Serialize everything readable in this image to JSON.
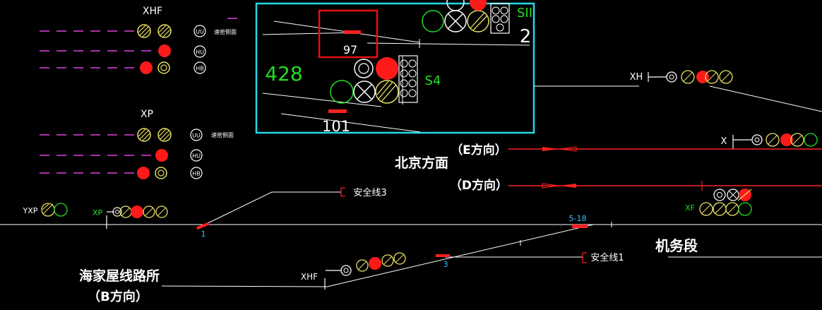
{
  "diagram": {
    "panel_signals": {
      "xhf_title": "XHF",
      "xp_title": "XP",
      "uu_badge": "UU",
      "hu_badge": "HU",
      "hb_badge": "HB",
      "xhf_note": "速密侧面",
      "xp_note": "速密侧面"
    },
    "zoom_box": {
      "label_97": "97",
      "label_428": "428",
      "label_s4": "S4",
      "label_101": "101",
      "label_sii": "SII",
      "label_2": "2"
    },
    "signals": {
      "xh": "XH",
      "x": "X",
      "xf": "XF",
      "yxp": "YXP",
      "xp_small": "XP",
      "xhf_lower": "XHF"
    },
    "directions": {
      "beijing": "北京方面",
      "e_dir": "（E方向）",
      "d_dir": "（D方向）",
      "haijiawu": "海家屋线路所",
      "b_dir": "（B方向）",
      "jiwuduan": "机务段"
    },
    "track_labels": {
      "safety3": "安全线3",
      "safety1": "安全线1",
      "sw1": "1",
      "sw3": "3",
      "sw518": "5-18"
    },
    "colors": {
      "background": "#000000",
      "track_white": "#ffffff",
      "track_red": "#ff2020",
      "signal_yellow": "#e8e060",
      "signal_green": "#22dd22",
      "signal_red": "#ff1a1a",
      "zoom_box": "#22d8e8",
      "highlight_box": "#e81010",
      "magenta": "#e040e0",
      "cyan_text": "#40c0ff"
    }
  }
}
